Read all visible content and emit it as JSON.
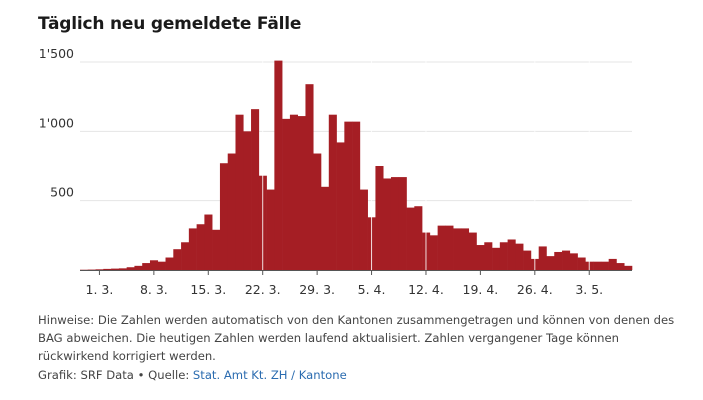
{
  "title": "Täglich neu gemeldete Fälle",
  "notes": "Hinweise: Die Zahlen werden automatisch von den Kantonen zusammengetragen und können von denen des BAG abweichen. Die heutigen Zahlen werden laufend aktualisiert. Zahlen vergangener Tage können rückwirkend korrigiert werden.",
  "footer": {
    "graphic_label": "Grafik: SRF Data",
    "bullet": "•",
    "source_label": "Quelle:",
    "source_link": "Stat. Amt Kt. ZH / Kantone"
  },
  "colors": {
    "bar": "#a51e24",
    "grid": "#e4e4e4",
    "axis": "#555555",
    "link": "#2b6cb0"
  },
  "chart_data": {
    "type": "bar",
    "title": "Täglich neu gemeldete Fälle",
    "ylim": [
      0,
      1500
    ],
    "yticks": [
      500,
      1000,
      1500
    ],
    "ytick_labels": [
      "500",
      "1'000",
      "1'500"
    ],
    "grid": true,
    "xtick_labels": [
      "1. 3.",
      "8. 3.",
      "15. 3.",
      "22. 3.",
      "29. 3.",
      "5. 4.",
      "12. 4.",
      "19. 4.",
      "26. 4.",
      "3. 5."
    ],
    "xtick_index": [
      2,
      9,
      16,
      23,
      30,
      37,
      44,
      51,
      58,
      65
    ],
    "series": [
      {
        "values": [
          2,
          3,
          5,
          8,
          10,
          12,
          20,
          30,
          50,
          70,
          60,
          90,
          150,
          200,
          300,
          330,
          400,
          290,
          770,
          840,
          1120,
          1000,
          1160,
          680,
          580,
          1510,
          1090,
          1120,
          1110,
          1340,
          840,
          600,
          1120,
          920,
          1070,
          1070,
          580,
          380,
          750,
          660,
          670,
          670,
          450,
          460,
          270,
          250,
          320,
          320,
          300,
          300,
          270,
          180,
          200,
          160,
          200,
          220,
          190,
          140,
          80,
          170,
          100,
          130,
          140,
          120,
          90,
          60,
          60,
          60,
          80,
          50,
          30
        ]
      }
    ]
  }
}
